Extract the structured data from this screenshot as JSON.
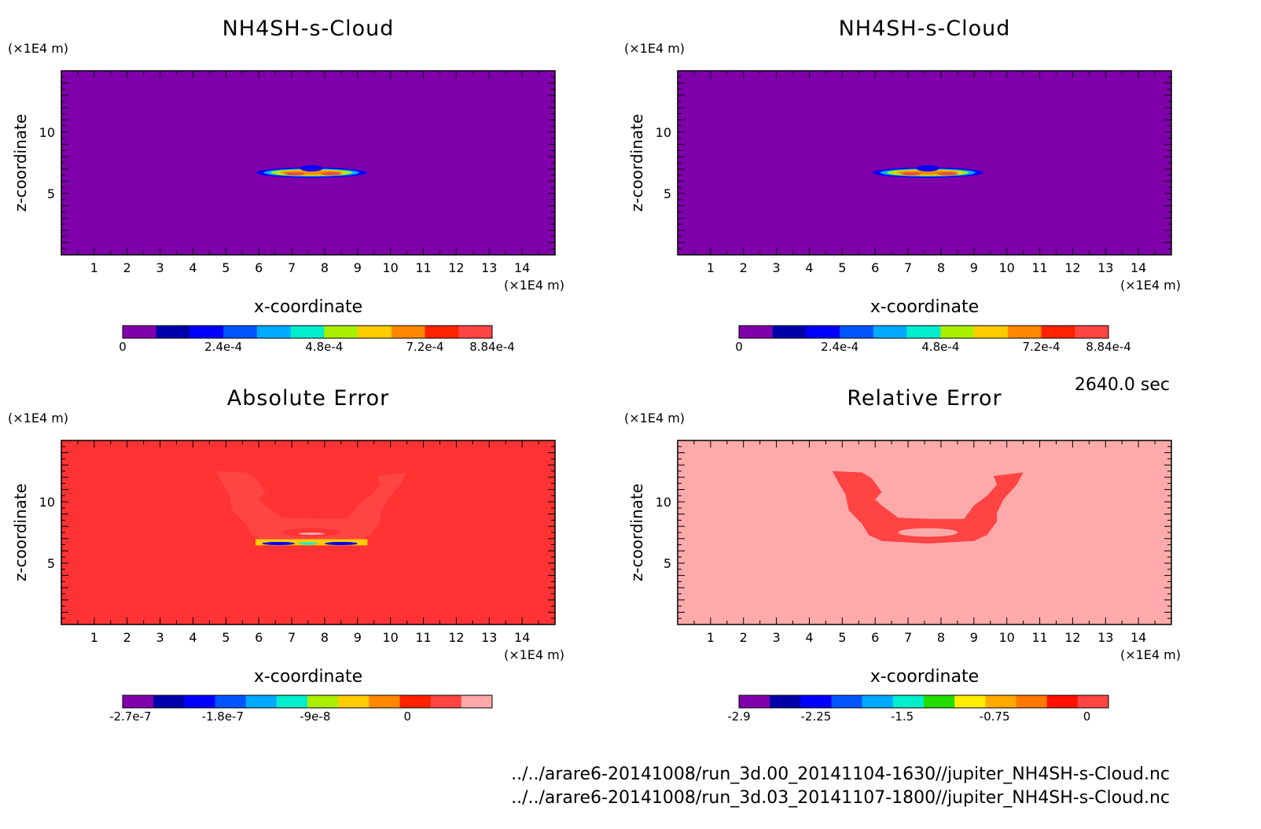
{
  "time_label": "2640.0 sec",
  "files": [
    "../../arare6-20141008/run_3d.00_20141104-1630//jupiter_NH4SH-s-Cloud.nc",
    "../../arare6-20141008/run_3d.03_20141107-1800//jupiter_NH4SH-s-Cloud.nc"
  ],
  "chart_data": [
    {
      "type": "heatmap",
      "title": "NH4SH-s-Cloud",
      "xlabel": "x-coordinate",
      "ylabel": "z-coordinate",
      "x_unit": "(×1E4 m)",
      "y_unit": "(×1E4 m)",
      "xlim": [
        0,
        15
      ],
      "ylim": [
        0,
        15
      ],
      "x_ticks": [
        1,
        2,
        3,
        4,
        5,
        6,
        7,
        8,
        9,
        10,
        11,
        12,
        13,
        14
      ],
      "y_ticks": [
        5,
        10
      ],
      "background": "#7f00aa",
      "colorbar": {
        "colors": [
          "#7f00aa",
          "#0000aa",
          "#0000ff",
          "#0055ff",
          "#00aaff",
          "#00eecc",
          "#aaee00",
          "#ffcc00",
          "#ff8800",
          "#ff2200",
          "#ff4444"
        ],
        "tick_labels": [
          "0",
          "2.4e-4",
          "4.8e-4",
          "7.2e-4",
          "8.84e-4"
        ],
        "tick_positions": [
          0,
          3,
          6,
          9,
          11
        ]
      },
      "feature": "cloud"
    },
    {
      "type": "heatmap",
      "title": "NH4SH-s-Cloud",
      "xlabel": "x-coordinate",
      "ylabel": "z-coordinate",
      "x_unit": "(×1E4 m)",
      "y_unit": "(×1E4 m)",
      "xlim": [
        0,
        15
      ],
      "ylim": [
        0,
        15
      ],
      "x_ticks": [
        1,
        2,
        3,
        4,
        5,
        6,
        7,
        8,
        9,
        10,
        11,
        12,
        13,
        14
      ],
      "y_ticks": [
        5,
        10
      ],
      "background": "#7f00aa",
      "colorbar": {
        "colors": [
          "#7f00aa",
          "#0000aa",
          "#0000ff",
          "#0055ff",
          "#00aaff",
          "#00eecc",
          "#aaee00",
          "#ffcc00",
          "#ff8800",
          "#ff2200",
          "#ff4444"
        ],
        "tick_labels": [
          "0",
          "2.4e-4",
          "4.8e-4",
          "7.2e-4",
          "8.84e-4"
        ],
        "tick_positions": [
          0,
          3,
          6,
          9,
          11
        ]
      },
      "feature": "cloud"
    },
    {
      "type": "heatmap",
      "title": "Absolute Error",
      "xlabel": "x-coordinate",
      "ylabel": "z-coordinate",
      "x_unit": "(×1E4 m)",
      "y_unit": "(×1E4 m)",
      "xlim": [
        0,
        15
      ],
      "ylim": [
        0,
        15
      ],
      "x_ticks": [
        1,
        2,
        3,
        4,
        5,
        6,
        7,
        8,
        9,
        10,
        11,
        12,
        13,
        14
      ],
      "y_ticks": [
        5,
        10
      ],
      "background": "#ff3333",
      "colorbar": {
        "colors": [
          "#7f00aa",
          "#0000aa",
          "#0000ff",
          "#0055ff",
          "#00aaff",
          "#00eecc",
          "#aaee00",
          "#ffcc00",
          "#ff8800",
          "#ff2200",
          "#ff4444",
          "#ffaaaa"
        ],
        "tick_labels": [
          "-2.7e-7",
          "-1.8e-7",
          "-9e-8",
          "0"
        ],
        "tick_positions": [
          0.25,
          3.25,
          6.25,
          9.25
        ]
      },
      "feature": "abs_error"
    },
    {
      "type": "heatmap",
      "title": "Relative Error",
      "xlabel": "x-coordinate",
      "ylabel": "z-coordinate",
      "x_unit": "(×1E4 m)",
      "y_unit": "(×1E4 m)",
      "xlim": [
        0,
        15
      ],
      "ylim": [
        0,
        15
      ],
      "x_ticks": [
        1,
        2,
        3,
        4,
        5,
        6,
        7,
        8,
        9,
        10,
        11,
        12,
        13,
        14
      ],
      "y_ticks": [
        5,
        10
      ],
      "background": "#ffaaaa",
      "colorbar": {
        "colors": [
          "#7f00aa",
          "#0000aa",
          "#0000ff",
          "#0055ff",
          "#00aaff",
          "#00eecc",
          "#22dd00",
          "#ffee00",
          "#ffaa00",
          "#ff7700",
          "#ff1100",
          "#ff4444"
        ],
        "tick_labels": [
          "-2.9",
          "-2.25",
          "-1.5",
          "-0.75",
          "0"
        ],
        "tick_positions": [
          0,
          2.5,
          5.3,
          8.3,
          11.3
        ]
      },
      "feature": "rel_error"
    }
  ]
}
